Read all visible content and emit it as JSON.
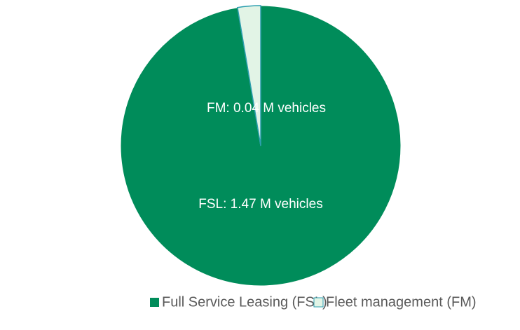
{
  "chart_data": {
    "type": "pie",
    "categories": [
      "Full Service Leasing (FSL)",
      "Fleet management (FM)"
    ],
    "values": [
      1.47,
      0.04
    ],
    "value_labels": [
      "FSL: 1.47 M vehicles",
      "FM: 0.04 M vehicles"
    ],
    "colors": [
      "#008c5a",
      "#e2f4e6"
    ],
    "legend": "bottom"
  }
}
